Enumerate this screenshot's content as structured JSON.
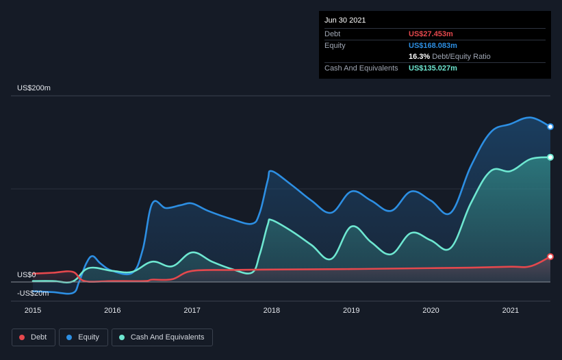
{
  "chart_data": {
    "type": "area",
    "y_ticks": [
      {
        "value": 200,
        "label": "US$200m"
      },
      {
        "value": 0,
        "label": "US$0"
      },
      {
        "value": -20,
        "label": "-US$20m"
      }
    ],
    "ylim": [
      -20,
      200
    ],
    "xlim": [
      2015.0,
      2021.5
    ],
    "x_ticks": [
      {
        "value": 2015,
        "label": "2015"
      },
      {
        "value": 2016,
        "label": "2016"
      },
      {
        "value": 2017,
        "label": "2017"
      },
      {
        "value": 2018,
        "label": "2018"
      },
      {
        "value": 2019,
        "label": "2019"
      },
      {
        "value": 2020,
        "label": "2020"
      },
      {
        "value": 2021,
        "label": "2021"
      }
    ],
    "series": [
      {
        "name": "Equity",
        "color": "#2d8fe3",
        "points": [
          [
            2015.0,
            -10
          ],
          [
            2015.25,
            -11
          ],
          [
            2015.5,
            -12
          ],
          [
            2015.58,
            0
          ],
          [
            2015.67,
            20
          ],
          [
            2015.75,
            28
          ],
          [
            2015.85,
            20
          ],
          [
            2016.0,
            12
          ],
          [
            2016.25,
            10
          ],
          [
            2016.38,
            35
          ],
          [
            2016.5,
            85
          ],
          [
            2016.67,
            80
          ],
          [
            2016.85,
            83
          ],
          [
            2017.0,
            85
          ],
          [
            2017.2,
            77
          ],
          [
            2017.5,
            68
          ],
          [
            2017.75,
            63
          ],
          [
            2017.85,
            75
          ],
          [
            2017.95,
            110
          ],
          [
            2018.0,
            120
          ],
          [
            2018.25,
            105
          ],
          [
            2018.5,
            88
          ],
          [
            2018.75,
            75
          ],
          [
            2019.0,
            98
          ],
          [
            2019.25,
            88
          ],
          [
            2019.5,
            77
          ],
          [
            2019.75,
            98
          ],
          [
            2020.0,
            88
          ],
          [
            2020.25,
            75
          ],
          [
            2020.5,
            125
          ],
          [
            2020.75,
            162
          ],
          [
            2021.0,
            171
          ],
          [
            2021.25,
            178
          ],
          [
            2021.5,
            168.083
          ]
        ]
      },
      {
        "name": "Cash And Equivalents",
        "color": "#6ee7d1",
        "points": [
          [
            2015.0,
            1
          ],
          [
            2015.25,
            1
          ],
          [
            2015.5,
            0.5
          ],
          [
            2015.7,
            15
          ],
          [
            2016.0,
            12
          ],
          [
            2016.25,
            11
          ],
          [
            2016.5,
            22
          ],
          [
            2016.75,
            17
          ],
          [
            2017.0,
            32
          ],
          [
            2017.25,
            22
          ],
          [
            2017.5,
            14
          ],
          [
            2017.75,
            10
          ],
          [
            2017.85,
            30
          ],
          [
            2017.95,
            62
          ],
          [
            2018.0,
            67
          ],
          [
            2018.25,
            55
          ],
          [
            2018.5,
            40
          ],
          [
            2018.75,
            25
          ],
          [
            2019.0,
            60
          ],
          [
            2019.25,
            43
          ],
          [
            2019.5,
            30
          ],
          [
            2019.75,
            53
          ],
          [
            2020.0,
            45
          ],
          [
            2020.25,
            37
          ],
          [
            2020.5,
            85
          ],
          [
            2020.75,
            120
          ],
          [
            2021.0,
            120
          ],
          [
            2021.25,
            133
          ],
          [
            2021.5,
            135.027
          ]
        ]
      },
      {
        "name": "Debt",
        "color": "#e5484d",
        "points": [
          [
            2015.0,
            9
          ],
          [
            2015.25,
            10
          ],
          [
            2015.5,
            11
          ],
          [
            2015.65,
            1
          ],
          [
            2016.0,
            1
          ],
          [
            2016.4,
            1
          ],
          [
            2016.5,
            2.5
          ],
          [
            2016.75,
            3
          ],
          [
            2017.0,
            12
          ],
          [
            2017.5,
            13
          ],
          [
            2018.0,
            13.5
          ],
          [
            2019.0,
            14
          ],
          [
            2020.0,
            15
          ],
          [
            2020.5,
            15.5
          ],
          [
            2021.0,
            16.5
          ],
          [
            2021.25,
            17
          ],
          [
            2021.5,
            27.453
          ]
        ]
      }
    ]
  },
  "tooltip": {
    "date": "Jun 30 2021",
    "debt_label": "Debt",
    "debt_value": "US$27.453m",
    "equity_label": "Equity",
    "equity_value": "US$168.083m",
    "ratio_value": "16.3%",
    "ratio_label": "Debt/Equity Ratio",
    "cash_label": "Cash And Equivalents",
    "cash_value": "US$135.027m"
  },
  "legend": [
    {
      "label": "Debt",
      "color": "#e5484d"
    },
    {
      "label": "Equity",
      "color": "#2d8fe3"
    },
    {
      "label": "Cash And Equivalents",
      "color": "#6ee7d1"
    }
  ],
  "colors": {
    "debt": "#e5484d",
    "equity": "#2d8fe3",
    "cash": "#6ee7d1",
    "text_muted": "#a0a7b4"
  }
}
